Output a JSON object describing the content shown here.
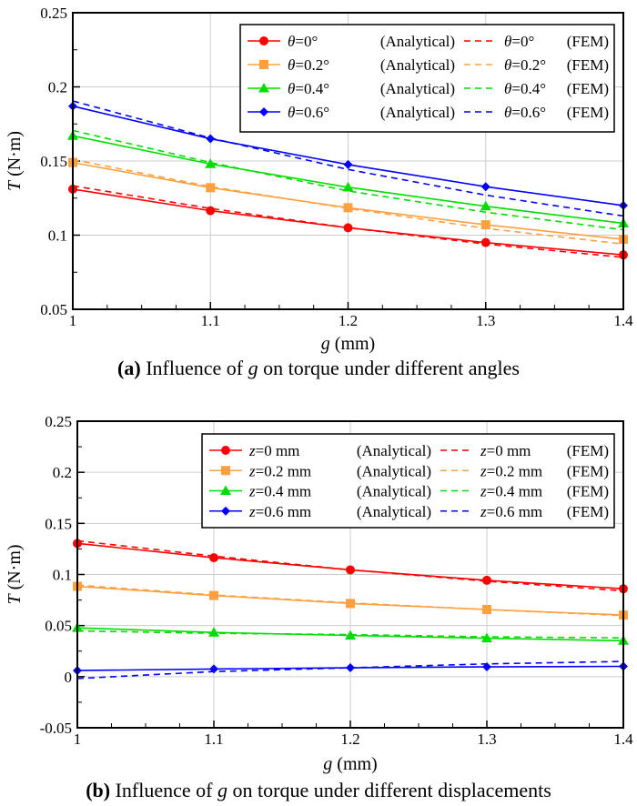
{
  "chart_data": [
    {
      "type": "line",
      "title": "Influence of g on torque under different angles",
      "caption_prefix": "(a)",
      "caption_pre": "Influence of",
      "caption_var": "g",
      "caption_post": "on torque under different angles",
      "xlabel_var": "g",
      "xlabel_unit": "(mm)",
      "ylabel_var": "T",
      "ylabel_unit": "(N·m)",
      "x": [
        1,
        1.1,
        1.2,
        1.3,
        1.4
      ],
      "xlim": [
        1,
        1.4
      ],
      "ylim": [
        0.05,
        0.25
      ],
      "xticks": [
        "1",
        "1.1",
        "1.2",
        "1.3",
        "1.4"
      ],
      "yticks": [
        "0.05",
        "0.1",
        "0.15",
        "0.2",
        "0.25"
      ],
      "grid": true,
      "legend_position": "top-right",
      "series": [
        {
          "var": "θ",
          "label": "=0°",
          "method": "(Analytical)",
          "style": "solid",
          "marker": "circle",
          "color": "#ff0000",
          "values": [
            0.131,
            0.1165,
            0.105,
            0.095,
            0.0867
          ]
        },
        {
          "var": "θ",
          "label": "=0.2°",
          "method": "(Analytical)",
          "style": "solid",
          "marker": "square",
          "color": "#ffa040",
          "values": [
            0.149,
            0.132,
            0.1185,
            0.107,
            0.0972
          ]
        },
        {
          "var": "θ",
          "label": "=0.4°",
          "method": "(Analytical)",
          "style": "solid",
          "marker": "triangle",
          "color": "#00dd00",
          "values": [
            0.167,
            0.148,
            0.1323,
            0.1195,
            0.108
          ]
        },
        {
          "var": "θ",
          "label": "=0.6°",
          "method": "(Analytical)",
          "style": "solid",
          "marker": "diamond",
          "color": "#0000ff",
          "values": [
            0.187,
            0.165,
            0.1476,
            0.1327,
            0.12
          ]
        },
        {
          "var": "θ",
          "label": "=0°",
          "method": "(FEM)",
          "style": "dashed",
          "marker": "none",
          "color": "#ff0000",
          "values": [
            0.1333,
            0.118,
            0.105,
            0.094,
            0.085
          ]
        },
        {
          "var": "θ",
          "label": "=0.2°",
          "method": "(FEM)",
          "style": "dashed",
          "marker": "none",
          "color": "#ffa040",
          "values": [
            0.151,
            0.1327,
            0.118,
            0.1046,
            0.094
          ]
        },
        {
          "var": "θ",
          "label": "=0.4°",
          "method": "(FEM)",
          "style": "dashed",
          "marker": "none",
          "color": "#00dd00",
          "values": [
            0.1706,
            0.149,
            0.1298,
            0.1155,
            0.1036
          ]
        },
        {
          "var": "θ",
          "label": "=0.6°",
          "method": "(FEM)",
          "style": "dashed",
          "marker": "none",
          "color": "#0000ff",
          "values": [
            0.1905,
            0.1655,
            0.1443,
            0.127,
            0.1129
          ]
        }
      ]
    },
    {
      "type": "line",
      "title": "Influence of g on torque under different displacements",
      "caption_prefix": "(b)",
      "caption_pre": "Influence of",
      "caption_var": "g",
      "caption_post": "on torque under different displacements",
      "xlabel_var": "g",
      "xlabel_unit": "(mm)",
      "ylabel_var": "T",
      "ylabel_unit": "(N·m)",
      "x": [
        1,
        1.1,
        1.2,
        1.3,
        1.4
      ],
      "xlim": [
        1,
        1.4
      ],
      "ylim": [
        -0.05,
        0.25
      ],
      "xticks": [
        "1",
        "1.1",
        "1.2",
        "1.3",
        "1.4"
      ],
      "yticks": [
        "-0.05",
        "0",
        "0.05",
        "0.1",
        "0.15",
        "0.2",
        "0.25"
      ],
      "grid": true,
      "legend_position": "top-right",
      "series": [
        {
          "var": "z",
          "label": "=0 mm",
          "method": "(Analytical)",
          "style": "solid",
          "marker": "circle",
          "color": "#ff0000",
          "values": [
            0.1304,
            0.1164,
            0.1045,
            0.0943,
            0.086
          ]
        },
        {
          "var": "z",
          "label": "=0.2 mm",
          "method": "(Analytical)",
          "style": "solid",
          "marker": "square",
          "color": "#ffa040",
          "values": [
            0.0884,
            0.0794,
            0.0716,
            0.0657,
            0.0603
          ]
        },
        {
          "var": "z",
          "label": "=0.4 mm",
          "method": "(Analytical)",
          "style": "solid",
          "marker": "triangle",
          "color": "#00dd00",
          "values": [
            0.0478,
            0.0433,
            0.0403,
            0.0376,
            0.0352
          ]
        },
        {
          "var": "z",
          "label": "=0.6 mm",
          "method": "(Analytical)",
          "style": "solid",
          "marker": "diamond",
          "color": "#0000ff",
          "values": [
            0.006,
            0.0075,
            0.0087,
            0.0096,
            0.0101
          ]
        },
        {
          "var": "z",
          "label": "=0 mm",
          "method": "(FEM)",
          "style": "dashed",
          "marker": "none",
          "color": "#ff0000",
          "values": [
            0.133,
            0.118,
            0.1045,
            0.0934,
            0.084
          ]
        },
        {
          "var": "z",
          "label": "=0.2 mm",
          "method": "(FEM)",
          "style": "dashed",
          "marker": "none",
          "color": "#ffa040",
          "values": [
            0.0896,
            0.08,
            0.0722,
            0.0657,
            0.0597
          ]
        },
        {
          "var": "z",
          "label": "=0.4 mm",
          "method": "(FEM)",
          "style": "dashed",
          "marker": "none",
          "color": "#00dd00",
          "values": [
            0.0448,
            0.0424,
            0.0412,
            0.039,
            0.0379
          ]
        },
        {
          "var": "z",
          "label": "=0.6 mm",
          "method": "(FEM)",
          "style": "dashed",
          "marker": "none",
          "color": "#0000ff",
          "values": [
            -0.0018,
            0.005,
            0.0087,
            0.0125,
            0.0149
          ]
        }
      ]
    }
  ]
}
